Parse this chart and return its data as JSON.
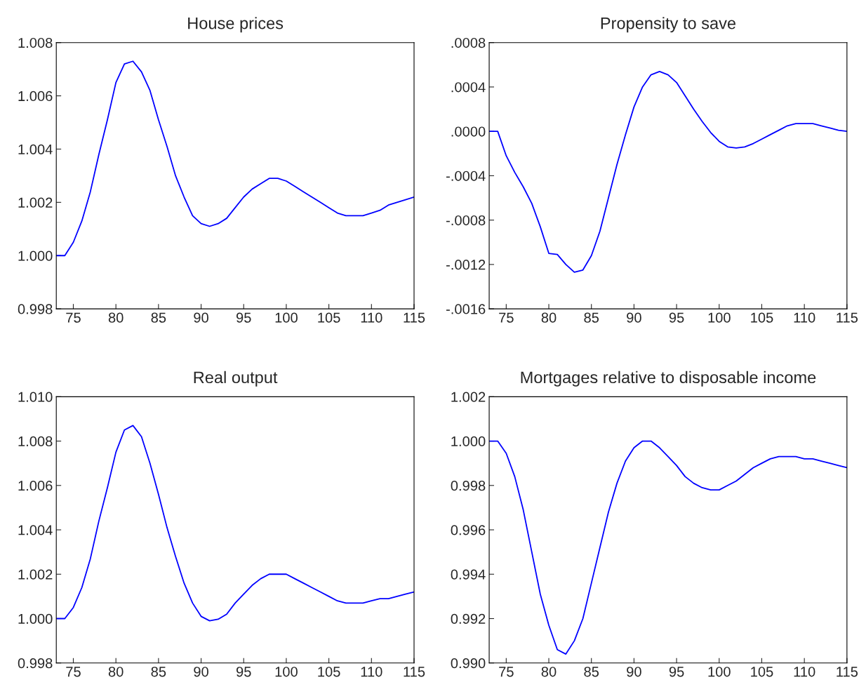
{
  "chart_data": [
    {
      "type": "line",
      "title": "House prices",
      "x": [
        73,
        74,
        75,
        76,
        77,
        78,
        79,
        80,
        81,
        82,
        83,
        84,
        85,
        86,
        87,
        88,
        89,
        90,
        91,
        92,
        93,
        94,
        95,
        96,
        97,
        98,
        99,
        100,
        101,
        102,
        103,
        104,
        105,
        106,
        107,
        108,
        109,
        110,
        111,
        112,
        113,
        114,
        115
      ],
      "series": [
        {
          "color": "#0000ff",
          "values": [
            1.0,
            1.0,
            1.0005,
            1.0013,
            1.0024,
            1.0038,
            1.0051,
            1.0065,
            1.0072,
            1.0073,
            1.0069,
            1.0062,
            1.0051,
            1.0041,
            1.003,
            1.0022,
            1.0015,
            1.0012,
            1.0011,
            1.0012,
            1.0014,
            1.0018,
            1.0022,
            1.0025,
            1.0027,
            1.0029,
            1.0029,
            1.0028,
            1.0026,
            1.0024,
            1.0022,
            1.002,
            1.0018,
            1.0016,
            1.0015,
            1.0015,
            1.0015,
            1.0016,
            1.0017,
            1.0019,
            1.002,
            1.0021,
            1.0022
          ]
        }
      ],
      "xlim": [
        73,
        115
      ],
      "xticks": [
        75,
        80,
        85,
        90,
        95,
        100,
        105,
        110,
        115
      ],
      "ylim": [
        0.998,
        1.008
      ],
      "yticks": [
        {
          "value": 0.998,
          "label": "0.998"
        },
        {
          "value": 1.0,
          "label": "1.000"
        },
        {
          "value": 1.002,
          "label": "1.002"
        },
        {
          "value": 1.004,
          "label": "1.004"
        },
        {
          "value": 1.006,
          "label": "1.006"
        },
        {
          "value": 1.008,
          "label": "1.008"
        }
      ]
    },
    {
      "type": "line",
      "title": "Propensity to save",
      "x": [
        73,
        74,
        75,
        76,
        77,
        78,
        79,
        80,
        81,
        82,
        83,
        84,
        85,
        86,
        87,
        88,
        89,
        90,
        91,
        92,
        93,
        94,
        95,
        96,
        97,
        98,
        99,
        100,
        101,
        102,
        103,
        104,
        105,
        106,
        107,
        108,
        109,
        110,
        111,
        112,
        113,
        114,
        115
      ],
      "series": [
        {
          "color": "#0000ff",
          "values": [
            0.0,
            0.0,
            -0.00022,
            -0.00037,
            -0.0005,
            -0.00065,
            -0.00086,
            -0.0011,
            -0.00111,
            -0.0012,
            -0.00127,
            -0.00125,
            -0.00112,
            -0.0009,
            -0.0006,
            -0.0003,
            -3e-05,
            0.00022,
            0.0004,
            0.00051,
            0.00054,
            0.00051,
            0.00044,
            0.00032,
            0.0002,
            9e-05,
            -1e-05,
            -9e-05,
            -0.00014,
            -0.00015,
            -0.00014,
            -0.00011,
            -7e-05,
            -3e-05,
            1e-05,
            5e-05,
            7e-05,
            7e-05,
            7e-05,
            5e-05,
            3e-05,
            1e-05,
            0.0
          ]
        }
      ],
      "xlim": [
        73,
        115
      ],
      "xticks": [
        75,
        80,
        85,
        90,
        95,
        100,
        105,
        110,
        115
      ],
      "ylim": [
        -0.0016,
        0.0008
      ],
      "yticks": [
        {
          "value": -0.0016,
          "label": "-.0016"
        },
        {
          "value": -0.0012,
          "label": "-.0012"
        },
        {
          "value": -0.0008,
          "label": "-.0008"
        },
        {
          "value": -0.0004,
          "label": "-.0004"
        },
        {
          "value": 0.0,
          "label": ".0000"
        },
        {
          "value": 0.0004,
          "label": ".0004"
        },
        {
          "value": 0.0008,
          "label": ".0008"
        }
      ]
    },
    {
      "type": "line",
      "title": "Real output",
      "x": [
        73,
        74,
        75,
        76,
        77,
        78,
        79,
        80,
        81,
        82,
        83,
        84,
        85,
        86,
        87,
        88,
        89,
        90,
        91,
        92,
        93,
        94,
        95,
        96,
        97,
        98,
        99,
        100,
        101,
        102,
        103,
        104,
        105,
        106,
        107,
        108,
        109,
        110,
        111,
        112,
        113,
        114,
        115
      ],
      "series": [
        {
          "color": "#0000ff",
          "values": [
            1.0,
            1.0,
            1.0005,
            1.0014,
            1.0027,
            1.0044,
            1.0059,
            1.0075,
            1.0085,
            1.0087,
            1.0082,
            1.007,
            1.0056,
            1.0041,
            1.0028,
            1.0016,
            1.0007,
            1.0001,
            0.9999,
            0.99997,
            1.0002,
            1.0007,
            1.0011,
            1.0015,
            1.0018,
            1.002,
            1.002,
            1.002,
            1.0018,
            1.0016,
            1.0014,
            1.0012,
            1.001,
            1.0008,
            1.0007,
            1.0007,
            1.0007,
            1.0008,
            1.0009,
            1.0009,
            1.001,
            1.0011,
            1.0012
          ]
        }
      ],
      "xlim": [
        73,
        115
      ],
      "xticks": [
        75,
        80,
        85,
        90,
        95,
        100,
        105,
        110,
        115
      ],
      "ylim": [
        0.998,
        1.01
      ],
      "yticks": [
        {
          "value": 0.998,
          "label": "0.998"
        },
        {
          "value": 1.0,
          "label": "1.000"
        },
        {
          "value": 1.002,
          "label": "1.002"
        },
        {
          "value": 1.004,
          "label": "1.004"
        },
        {
          "value": 1.006,
          "label": "1.006"
        },
        {
          "value": 1.008,
          "label": "1.008"
        },
        {
          "value": 1.01,
          "label": "1.010"
        }
      ]
    },
    {
      "type": "line",
      "title": "Mortgages relative to disposable income",
      "x": [
        73,
        74,
        75,
        76,
        77,
        78,
        79,
        80,
        81,
        82,
        83,
        84,
        85,
        86,
        87,
        88,
        89,
        90,
        91,
        92,
        93,
        94,
        95,
        96,
        97,
        98,
        99,
        100,
        101,
        102,
        103,
        104,
        105,
        106,
        107,
        108,
        109,
        110,
        111,
        112,
        113,
        114,
        115
      ],
      "series": [
        {
          "color": "#0000ff",
          "values": [
            1.0,
            1.0,
            0.99945,
            0.9984,
            0.9969,
            0.995,
            0.9931,
            0.9917,
            0.9906,
            0.9904,
            0.991,
            0.992,
            0.9936,
            0.9952,
            0.9968,
            0.9981,
            0.9991,
            0.9997,
            1.0,
            1.0,
            0.9997,
            0.9993,
            0.9989,
            0.9984,
            0.9981,
            0.9979,
            0.9978,
            0.9978,
            0.998,
            0.9982,
            0.9985,
            0.9988,
            0.999,
            0.9992,
            0.9993,
            0.9993,
            0.9993,
            0.9992,
            0.9992,
            0.9991,
            0.999,
            0.9989,
            0.9988
          ]
        }
      ],
      "xlim": [
        73,
        115
      ],
      "xticks": [
        75,
        80,
        85,
        90,
        95,
        100,
        105,
        110,
        115
      ],
      "ylim": [
        0.99,
        1.002
      ],
      "yticks": [
        {
          "value": 0.99,
          "label": "0.990"
        },
        {
          "value": 0.992,
          "label": "0.992"
        },
        {
          "value": 0.994,
          "label": "0.994"
        },
        {
          "value": 0.996,
          "label": "0.996"
        },
        {
          "value": 0.998,
          "label": "0.998"
        },
        {
          "value": 1.0,
          "label": "1.000"
        },
        {
          "value": 1.002,
          "label": "1.002"
        }
      ]
    }
  ]
}
